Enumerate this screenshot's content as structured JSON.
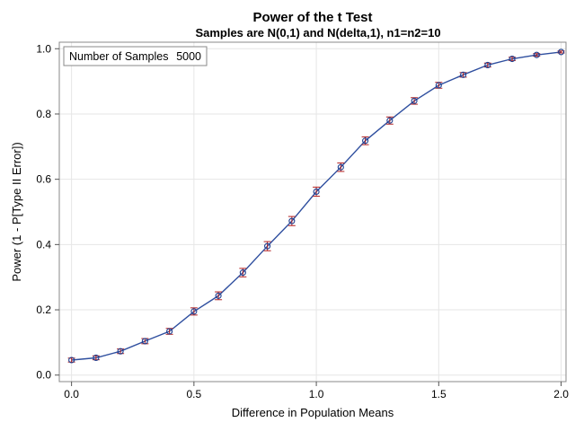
{
  "chart_data": {
    "type": "scatter",
    "title": "Power of the t Test",
    "subtitle": "Samples are N(0,1) and N(delta,1), n1=n2=10",
    "xlabel": "Difference in Population Means",
    "ylabel": "Power (1 - P[Type II Error])",
    "xlim": [
      -0.05,
      2.02
    ],
    "ylim": [
      -0.02,
      1.02
    ],
    "x_ticks": [
      "0.0",
      "0.5",
      "1.0",
      "1.5",
      "2.0"
    ],
    "y_ticks": [
      "0.0",
      "0.2",
      "0.4",
      "0.6",
      "0.8",
      "1.0"
    ],
    "grid": true,
    "inset": {
      "label": "Number of Samples",
      "value": "5000",
      "placement": "top-left"
    },
    "series": [
      {
        "x": [
          0.0,
          0.1,
          0.2,
          0.3,
          0.4,
          0.5,
          0.6,
          0.7,
          0.8,
          0.9,
          1.0,
          1.1,
          1.2,
          1.3,
          1.4,
          1.5,
          1.6,
          1.7,
          1.8,
          1.9,
          2.0
        ],
        "y": [
          0.046,
          0.053,
          0.073,
          0.104,
          0.134,
          0.195,
          0.243,
          0.314,
          0.395,
          0.472,
          0.562,
          0.637,
          0.718,
          0.78,
          0.84,
          0.888,
          0.92,
          0.95,
          0.969,
          0.981,
          0.99
        ],
        "lower": [
          0.04,
          0.047,
          0.066,
          0.096,
          0.125,
          0.184,
          0.231,
          0.301,
          0.381,
          0.458,
          0.548,
          0.624,
          0.706,
          0.769,
          0.83,
          0.879,
          0.913,
          0.944,
          0.964,
          0.977,
          0.987
        ],
        "upper": [
          0.052,
          0.059,
          0.08,
          0.112,
          0.143,
          0.206,
          0.255,
          0.327,
          0.409,
          0.486,
          0.576,
          0.65,
          0.73,
          0.791,
          0.85,
          0.897,
          0.927,
          0.956,
          0.974,
          0.985,
          0.993
        ]
      }
    ],
    "colors": {
      "line": "#2f4f9f",
      "marker": "#1f3f8f",
      "errorbar": "#b22222",
      "grid": "#e6e6e6",
      "frame": "#888888"
    }
  }
}
